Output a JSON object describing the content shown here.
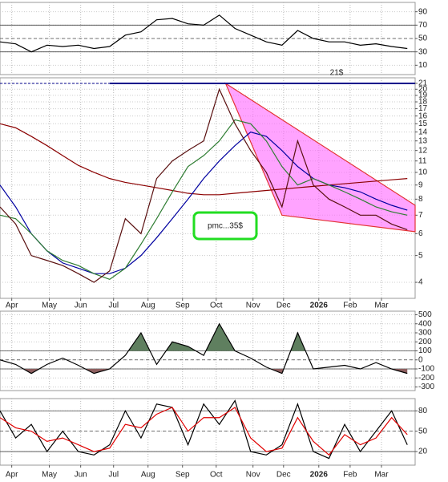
{
  "chart_data": [
    {
      "type": "line",
      "panel": "rsi",
      "xlim": [
        0,
        53
      ],
      "ylim": [
        -4,
        104
      ],
      "yticks": [
        90,
        70,
        50,
        30,
        10
      ],
      "levels": [
        70,
        50,
        30
      ],
      "x": [
        0,
        2,
        4,
        6,
        8,
        10,
        12,
        14,
        16,
        18,
        20,
        22,
        24,
        26,
        28,
        30,
        32,
        34,
        36,
        38,
        40,
        42,
        44,
        46,
        48,
        50,
        52
      ],
      "series": [
        {
          "color": "#000000",
          "values": [
            45,
            42,
            30,
            40,
            38,
            40,
            35,
            38,
            55,
            60,
            78,
            80,
            72,
            70,
            85,
            65,
            55,
            45,
            40,
            62,
            50,
            45,
            45,
            40,
            42,
            38,
            35
          ]
        }
      ]
    },
    {
      "type": "line",
      "panel": "price",
      "log": true,
      "xlim": [
        0,
        53
      ],
      "ylim": [
        3.5,
        22
      ],
      "yticks": [
        4,
        5,
        6,
        7,
        8,
        9,
        10,
        11,
        12,
        13,
        14,
        15,
        16,
        17,
        18,
        19,
        20,
        21
      ],
      "xticks": [
        {
          "value": 1.5,
          "label": "Apr"
        },
        {
          "value": 6.3,
          "label": "May"
        },
        {
          "value": 10.3,
          "label": "Jun"
        },
        {
          "value": 14.5,
          "label": "Jul"
        },
        {
          "value": 18.9,
          "label": "Aug"
        },
        {
          "value": 23.3,
          "label": "Sep"
        },
        {
          "value": 27.6,
          "label": "Oct"
        },
        {
          "value": 32.3,
          "label": "Nov"
        },
        {
          "value": 36.2,
          "label": "Dec"
        },
        {
          "value": 40.7,
          "label": "2026",
          "bold": true
        },
        {
          "value": 44.7,
          "label": "Feb"
        },
        {
          "value": 48.7,
          "label": "Mar"
        }
      ],
      "x": [
        0,
        2,
        4,
        6,
        8,
        10,
        12,
        14,
        16,
        18,
        20,
        22,
        24,
        26,
        28,
        30,
        32,
        34,
        36,
        38,
        40,
        42,
        44,
        46,
        48,
        50,
        52
      ],
      "wedge": {
        "x": [
          28.8,
          53,
          53,
          36
        ],
        "values": [
          21,
          7.6,
          6.1,
          7.0
        ],
        "fill": "#ff66ff",
        "edge": "#e33333"
      },
      "hline": {
        "value": 21,
        "label": "21$",
        "color": "#00008b"
      },
      "note": "pmc...35$",
      "series": [
        {
          "color": "#8b0000",
          "values": [
            15,
            14.5,
            13.5,
            12.5,
            11.5,
            10.6,
            10,
            9.5,
            9.2,
            9.0,
            8.8,
            8.6,
            8.4,
            8.3,
            8.3,
            8.4,
            8.5,
            8.6,
            8.7,
            8.8,
            8.9,
            9.0,
            9.1,
            9.2,
            9.3,
            9.4,
            9.5
          ]
        },
        {
          "color": "#0000a0",
          "values": [
            9.0,
            7.5,
            6.0,
            5.2,
            4.7,
            4.5,
            4.3,
            4.3,
            4.5,
            5.0,
            5.8,
            6.8,
            8.0,
            9.5,
            11.0,
            12.5,
            14.0,
            13.5,
            12.0,
            10.5,
            9.5,
            9.0,
            8.8,
            8.5,
            8.0,
            7.6,
            7.3
          ]
        },
        {
          "color": "#2e7d32",
          "values": [
            7.0,
            6.8,
            6.0,
            5.2,
            4.8,
            4.6,
            4.3,
            4.1,
            4.5,
            5.5,
            6.8,
            8.5,
            10.5,
            11.5,
            13.0,
            15.5,
            15.0,
            13.0,
            10.5,
            9.0,
            9.5,
            9.0,
            8.5,
            8.0,
            7.5,
            7.2,
            7.0
          ]
        },
        {
          "color": "#5a1010",
          "values": [
            7.5,
            6.5,
            5.0,
            4.8,
            4.6,
            4.3,
            4.0,
            4.4,
            6.8,
            6.0,
            9.5,
            11.0,
            12.0,
            13.0,
            20.0,
            15.0,
            12.0,
            10.0,
            7.5,
            13.0,
            9.0,
            8.0,
            7.5,
            7.0,
            7.0,
            6.5,
            6.2
          ]
        }
      ]
    },
    {
      "type": "line",
      "panel": "cci",
      "xlim": [
        0,
        53
      ],
      "ylim": [
        -340,
        540
      ],
      "yticks": [
        500,
        400,
        300,
        200,
        100,
        0,
        -100,
        -200,
        -300
      ],
      "levels": [
        100,
        0,
        -100
      ],
      "fill_above": {
        "value": 100,
        "color": "#5f7f5f"
      },
      "fill_below": {
        "value": -100,
        "color": "#8d5f5f"
      },
      "x": [
        0,
        2,
        4,
        6,
        8,
        10,
        12,
        14,
        16,
        18,
        20,
        22,
        24,
        26,
        28,
        30,
        32,
        34,
        36,
        38,
        40,
        42,
        44,
        46,
        48,
        50,
        52
      ],
      "series": [
        {
          "color": "#000000",
          "values": [
            0,
            -50,
            -150,
            -50,
            20,
            -60,
            -150,
            -100,
            50,
            300,
            -50,
            200,
            150,
            50,
            400,
            100,
            20,
            -80,
            -150,
            300,
            -100,
            -80,
            -60,
            -100,
            -30,
            -100,
            -150
          ]
        }
      ]
    },
    {
      "type": "line",
      "panel": "stoch",
      "xlim": [
        0,
        53
      ],
      "ylim": [
        0,
        98
      ],
      "yticks": [
        80,
        50,
        20
      ],
      "levels": [
        80,
        50,
        20
      ],
      "xticks": [
        {
          "value": 1.5,
          "label": "Apr"
        },
        {
          "value": 6.3,
          "label": "May"
        },
        {
          "value": 10.3,
          "label": "Jun"
        },
        {
          "value": 14.5,
          "label": "Jul"
        },
        {
          "value": 18.9,
          "label": "Aug"
        },
        {
          "value": 23.3,
          "label": "Sep"
        },
        {
          "value": 27.6,
          "label": "Oct"
        },
        {
          "value": 32.3,
          "label": "Nov"
        },
        {
          "value": 36.2,
          "label": "Dec"
        },
        {
          "value": 40.7,
          "label": "2026",
          "bold": true
        },
        {
          "value": 44.7,
          "label": "Feb"
        },
        {
          "value": 48.7,
          "label": "Mar"
        }
      ],
      "x": [
        0,
        2,
        4,
        6,
        8,
        10,
        12,
        14,
        16,
        18,
        20,
        22,
        24,
        26,
        28,
        30,
        32,
        34,
        36,
        38,
        40,
        42,
        44,
        46,
        48,
        50,
        52
      ],
      "series": [
        {
          "color": "#000000",
          "values": [
            80,
            40,
            60,
            20,
            50,
            20,
            15,
            30,
            80,
            40,
            90,
            85,
            30,
            90,
            60,
            95,
            20,
            15,
            30,
            90,
            20,
            10,
            60,
            20,
            50,
            80,
            30
          ]
        },
        {
          "color": "#e00000",
          "values": [
            70,
            55,
            50,
            35,
            40,
            30,
            20,
            25,
            60,
            55,
            75,
            85,
            50,
            70,
            70,
            85,
            40,
            20,
            25,
            70,
            35,
            15,
            45,
            30,
            40,
            70,
            45
          ]
        }
      ]
    }
  ]
}
